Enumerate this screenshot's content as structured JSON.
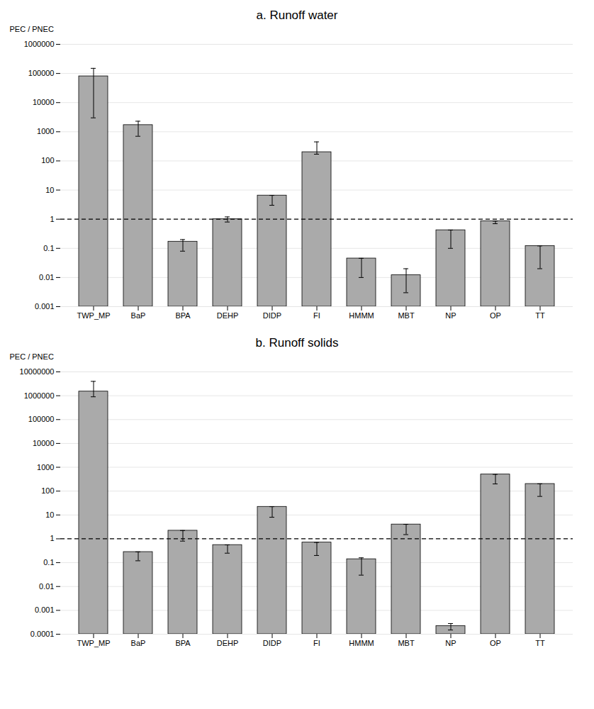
{
  "chart_data": [
    {
      "type": "bar",
      "title": "a. Runoff water",
      "ylabel": "PEC / PNEC",
      "categories": [
        "TWP_MP",
        "BaP",
        "BPA",
        "DEHP",
        "DIDP",
        "FI",
        "HMMM",
        "MBT",
        "NP",
        "OP",
        "TT"
      ],
      "values": [
        80000,
        1700,
        0.17,
        1.0,
        6.5,
        200,
        0.045,
        0.012,
        0.42,
        0.85,
        0.12
      ],
      "err_low": [
        3000,
        700,
        0.08,
        0.8,
        3.0,
        170,
        0.01,
        0.003,
        0.1,
        0.7,
        0.02
      ],
      "err_high": [
        150000,
        2300,
        0.2,
        1.2,
        6.565,
        450,
        0.04545,
        0.02,
        0.4242,
        0.8585,
        0.1212
      ],
      "reference_line": 1.0,
      "ylim": [
        0.001,
        1000000
      ],
      "yticks": [
        0.001,
        0.01,
        0.1,
        1,
        10,
        100,
        1000,
        10000,
        100000,
        1000000
      ],
      "log": "y",
      "grid": true,
      "color": "#aaaaaa"
    },
    {
      "type": "bar",
      "title": "b. Runoff solids",
      "ylabel": "PEC / PNEC",
      "categories": [
        "TWP_MP",
        "BaP",
        "BPA",
        "DEHP",
        "DIDP",
        "FI",
        "HMMM",
        "MBT",
        "NP",
        "OP",
        "TT"
      ],
      "values": [
        1500000,
        0.28,
        2.2,
        0.55,
        22,
        0.7,
        0.14,
        4.0,
        0.00022,
        500,
        200
      ],
      "err_low": [
        900000,
        0.12,
        0.8,
        0.25,
        8,
        0.2,
        0.03,
        1.5,
        0.00015,
        200,
        60
      ],
      "err_high": [
        4000000,
        0.2828,
        2.222,
        0.5555,
        22.22,
        0.707,
        0.16,
        4.04,
        0.00028,
        505,
        202
      ],
      "reference_line": 1.0,
      "ylim": [
        0.0001,
        10000000
      ],
      "yticks": [
        0.0001,
        0.001,
        0.01,
        0.1,
        1,
        10,
        100,
        1000,
        10000,
        100000,
        1000000,
        10000000
      ],
      "log": "y",
      "grid": true,
      "color": "#aaaaaa"
    }
  ]
}
